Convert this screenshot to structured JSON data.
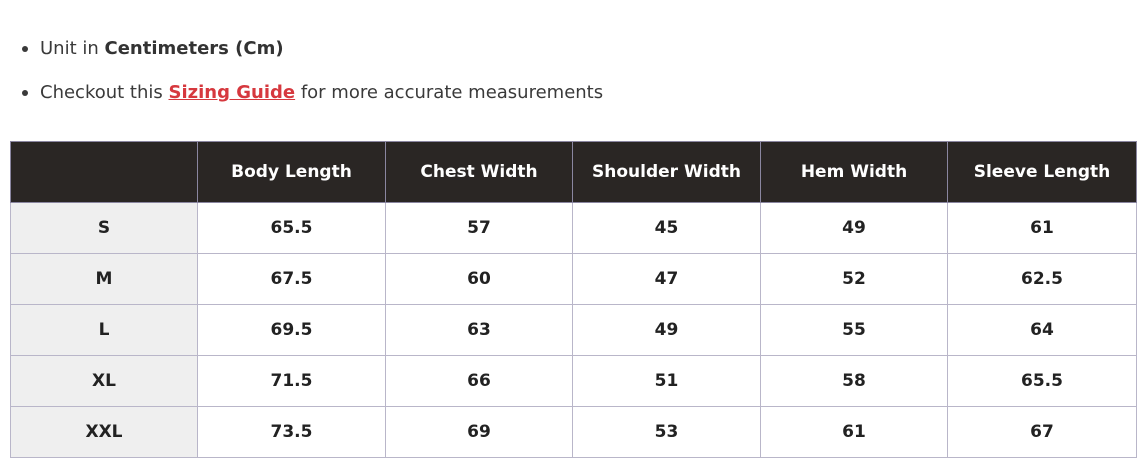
{
  "notes": {
    "unit_prefix": "Unit in ",
    "unit_value": "Centimeters (Cm)",
    "checkout_prefix": "Checkout this ",
    "guide_link": "Sizing Guide",
    "checkout_suffix": " for more accurate measurements"
  },
  "table": {
    "corner": "",
    "headers": [
      "Body Length",
      "Chest Width",
      "Shoulder Width",
      "Hem Width",
      "Sleeve Length"
    ],
    "rows": [
      {
        "size": "S",
        "values": [
          "65.5",
          "57",
          "45",
          "49",
          "61"
        ]
      },
      {
        "size": "M",
        "values": [
          "67.5",
          "60",
          "47",
          "52",
          "62.5"
        ]
      },
      {
        "size": "L",
        "values": [
          "69.5",
          "63",
          "49",
          "55",
          "64"
        ]
      },
      {
        "size": "XL",
        "values": [
          "71.5",
          "66",
          "51",
          "58",
          "65.5"
        ]
      },
      {
        "size": "XXL",
        "values": [
          "73.5",
          "69",
          "53",
          "61",
          "67"
        ]
      }
    ]
  },
  "colors": {
    "header_bg": "#2a2624",
    "link": "#d6383e",
    "size_column_bg": "#efefef"
  }
}
